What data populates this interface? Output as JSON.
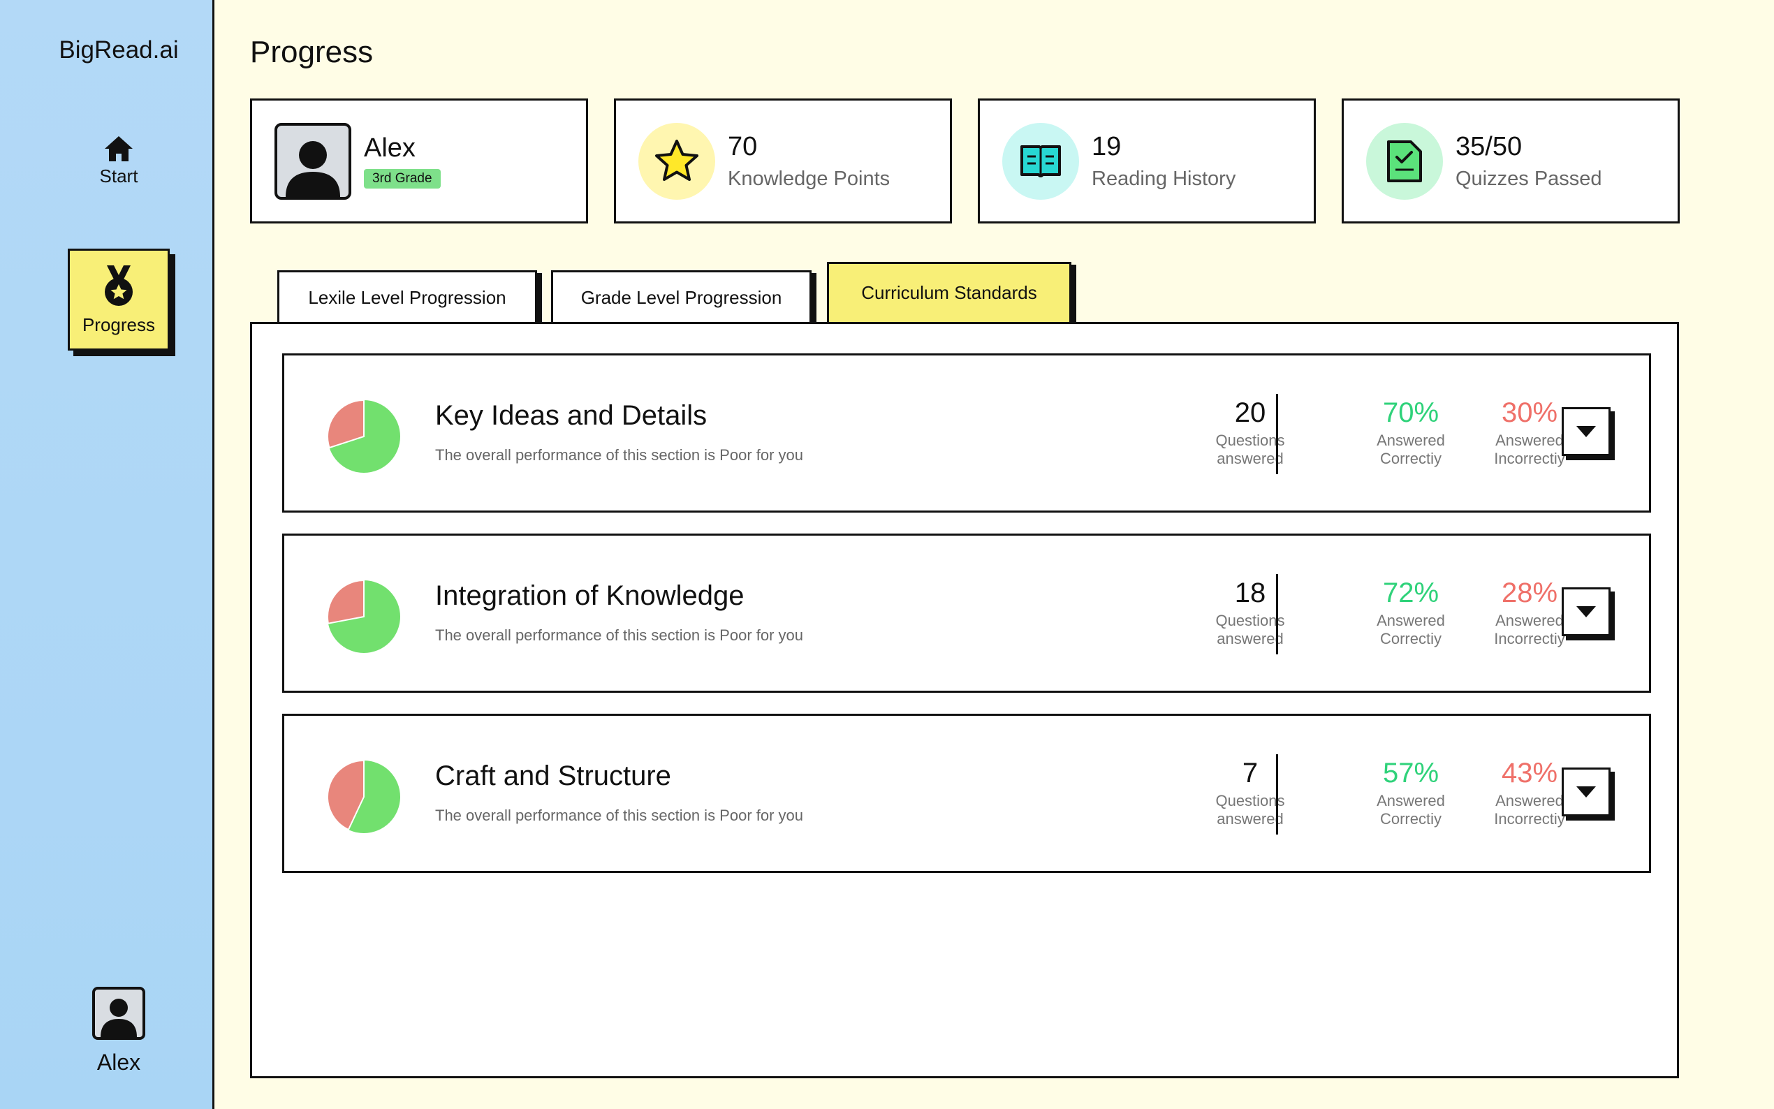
{
  "app": {
    "brand": "BigRead.ai"
  },
  "nav": {
    "start": "Start",
    "progress": "Progress",
    "user": "Alex"
  },
  "page": {
    "title": "Progress"
  },
  "profile": {
    "name": "Alex",
    "grade": "3rd Grade"
  },
  "stats": [
    {
      "value": "70",
      "label": "Knowledge Points",
      "icon": "star-icon",
      "color": "#fff6b0"
    },
    {
      "value": "19",
      "label": "Reading History",
      "icon": "book-icon",
      "color": "#c9f7f3"
    },
    {
      "value": "35/50",
      "label": "Quizzes Passed",
      "icon": "quiz-check-icon",
      "color": "#c9f7da"
    }
  ],
  "tabs": [
    {
      "label": "Lexile Level Progression",
      "active": false
    },
    {
      "label": "Grade Level Progression",
      "active": false
    },
    {
      "label": "Curriculum Standards",
      "active": true
    }
  ],
  "standards": [
    {
      "title": "Key Ideas and Details",
      "subtitle": "The overall performance of this section is Poor for you",
      "questions": "20",
      "questions_caption_1": "Questions",
      "questions_caption_2": "answered",
      "correct_pct": "70%",
      "correct_value": 0.7,
      "correct_caption_1": "Answered",
      "correct_caption_2": "Correctiy",
      "incorrect_pct": "30%",
      "incorrect_caption_1": "Answered",
      "incorrect_caption_2": "Incorrectiy"
    },
    {
      "title": "Integration of Knowledge",
      "subtitle": "The overall performance of this section is Poor for you",
      "questions": "18",
      "questions_caption_1": "Questions",
      "questions_caption_2": "answered",
      "correct_pct": "72%",
      "correct_value": 0.72,
      "correct_caption_1": "Answered",
      "correct_caption_2": "Correctiy",
      "incorrect_pct": "28%",
      "incorrect_caption_1": "Answered",
      "incorrect_caption_2": "Incorrectiy"
    },
    {
      "title": "Craft and Structure",
      "subtitle": "The overall performance of this section is Poor for you",
      "questions": "7",
      "questions_caption_1": "Questions",
      "questions_caption_2": "answered",
      "correct_pct": "57%",
      "correct_value": 0.57,
      "correct_caption_1": "Answered",
      "correct_caption_2": "Correctiy",
      "incorrect_pct": "43%",
      "incorrect_caption_1": "Answered",
      "incorrect_caption_2": "Incorrectiy"
    }
  ],
  "colors": {
    "accent_yellow": "#f8ef77",
    "sidebar_blue": "#b3d9f7",
    "correct_green": "#2fd27a",
    "incorrect_red": "#ef7069",
    "pie_green": "#72e06e",
    "pie_red": "#e8867c"
  }
}
